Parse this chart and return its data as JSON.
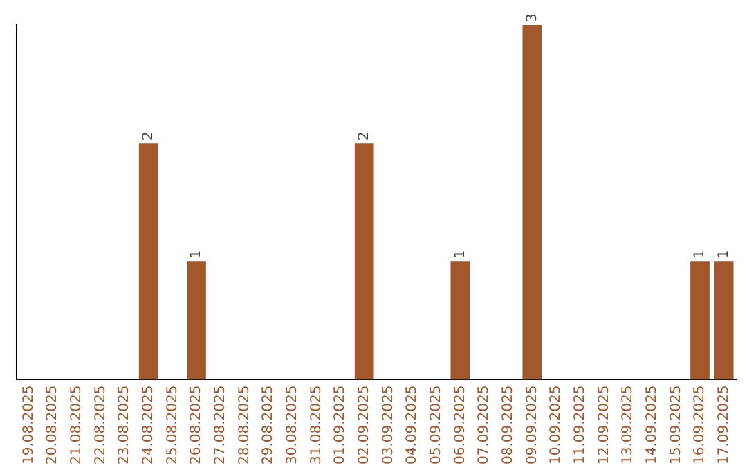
{
  "chart_data": {
    "type": "bar",
    "categories": [
      "19.08.2025",
      "20.08.2025",
      "21.08.2025",
      "22.08.2025",
      "23.08.2025",
      "24.08.2025",
      "25.08.2025",
      "26.08.2025",
      "27.08.2025",
      "28.08.2025",
      "29.08.2025",
      "30.08.2025",
      "31.08.2025",
      "01.09.2025",
      "02.09.2025",
      "03.09.2025",
      "04.09.2025",
      "05.09.2025",
      "06.09.2025",
      "07.09.2025",
      "08.09.2025",
      "09.09.2025",
      "10.09.2025",
      "11.09.2025",
      "12.09.2025",
      "13.09.2025",
      "14.09.2025",
      "15.09.2025",
      "16.09.2025",
      "17.09.2025"
    ],
    "values": [
      0,
      0,
      0,
      0,
      0,
      2,
      0,
      1,
      0,
      0,
      0,
      0,
      0,
      0,
      2,
      0,
      0,
      0,
      1,
      0,
      0,
      3,
      0,
      0,
      0,
      0,
      0,
      0,
      1,
      1
    ],
    "value_labels": [
      null,
      null,
      null,
      null,
      null,
      "2",
      null,
      "1",
      null,
      null,
      null,
      null,
      null,
      null,
      "2",
      null,
      null,
      null,
      "1",
      null,
      null,
      "3",
      null,
      null,
      null,
      null,
      null,
      null,
      "1",
      "1"
    ],
    "color": "#a0582c",
    "grid": false,
    "legend": false,
    "tick_labels": "x"
  }
}
